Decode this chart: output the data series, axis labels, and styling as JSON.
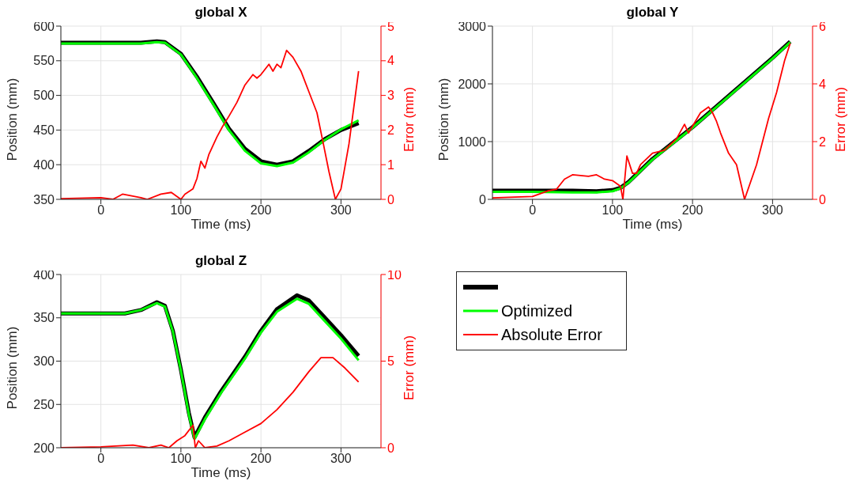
{
  "chart_data": [
    {
      "type": "line",
      "title": "global X",
      "xlabel": "Time (ms)",
      "ylabel": "Position (mm)",
      "y2label": "Error (mm)",
      "xlim": [
        -50,
        350
      ],
      "xticks": [
        0,
        100,
        200,
        300
      ],
      "ylim": [
        350,
        600
      ],
      "yticks": [
        350,
        400,
        450,
        500,
        550,
        600
      ],
      "y2lim": [
        0,
        5
      ],
      "y2ticks": [
        0,
        1,
        2,
        3,
        4,
        5
      ],
      "grid": true,
      "series": [
        {
          "color": "#000000",
          "x": [
            -50,
            0,
            50,
            70,
            80,
            100,
            120,
            140,
            160,
            180,
            200,
            220,
            240,
            260,
            280,
            300,
            322
          ],
          "values": [
            576,
            576,
            576,
            578,
            577,
            560,
            527,
            490,
            452,
            423,
            405,
            400,
            405,
            420,
            437,
            450,
            460
          ]
        },
        {
          "color": "#00ff00",
          "x": [
            -50,
            0,
            50,
            70,
            80,
            100,
            120,
            140,
            160,
            180,
            200,
            220,
            240,
            260,
            280,
            300,
            322
          ],
          "values": [
            575,
            575,
            575,
            577,
            576,
            559,
            525,
            488,
            450,
            420,
            402,
            398,
            403,
            418,
            436,
            451,
            464
          ]
        },
        {
          "color": "#ff0000",
          "axis": "y2",
          "x": [
            -50,
            0,
            15,
            27,
            50,
            58,
            75,
            88,
            100,
            105,
            115,
            120,
            125,
            130,
            135,
            145,
            152,
            160,
            170,
            180,
            190,
            195,
            200,
            210,
            215,
            220,
            225,
            232,
            240,
            250,
            260,
            270,
            278,
            285,
            293,
            300,
            310,
            322
          ],
          "values": [
            0.02,
            0.05,
            0,
            0.15,
            0.05,
            0,
            0.15,
            0.2,
            0,
            0.15,
            0.3,
            0.6,
            1.1,
            0.9,
            1.3,
            1.8,
            2.1,
            2.4,
            2.8,
            3.3,
            3.6,
            3.5,
            3.6,
            3.9,
            3.7,
            3.9,
            3.8,
            4.3,
            4.1,
            3.7,
            3.1,
            2.5,
            1.6,
            0.8,
            0,
            0.3,
            1.6,
            3.7
          ]
        }
      ]
    },
    {
      "type": "line",
      "title": "global Y",
      "xlabel": "Time (ms)",
      "ylabel": "Position (mm)",
      "y2label": "Error (mm)",
      "xlim": [
        -50,
        350
      ],
      "xticks": [
        0,
        100,
        200,
        300
      ],
      "ylim": [
        0,
        3000
      ],
      "yticks": [
        0,
        1000,
        2000,
        3000
      ],
      "y2lim": [
        0,
        6
      ],
      "y2ticks": [
        0,
        2,
        4,
        6
      ],
      "grid": true,
      "series": [
        {
          "color": "#000000",
          "x": [
            -50,
            0,
            50,
            80,
            100,
            110,
            120,
            150,
            200,
            250,
            300,
            322
          ],
          "values": [
            150,
            150,
            150,
            140,
            160,
            200,
            300,
            700,
            1250,
            1850,
            2450,
            2730
          ]
        },
        {
          "color": "#00ff00",
          "x": [
            -50,
            0,
            50,
            80,
            100,
            110,
            120,
            150,
            200,
            250,
            300,
            322
          ],
          "values": [
            130,
            130,
            120,
            120,
            140,
            190,
            290,
            690,
            1240,
            1840,
            2440,
            2720
          ]
        },
        {
          "color": "#ff0000",
          "axis": "y2",
          "x": [
            -50,
            0,
            20,
            30,
            40,
            50,
            70,
            80,
            90,
            100,
            110,
            113,
            118,
            125,
            130,
            135,
            150,
            165,
            180,
            190,
            195,
            210,
            220,
            225,
            230,
            235,
            245,
            255,
            265,
            280,
            295,
            305,
            315,
            322
          ],
          "values": [
            0.05,
            0.1,
            0.3,
            0.35,
            0.7,
            0.85,
            0.8,
            0.85,
            0.7,
            0.65,
            0.45,
            0,
            1.5,
            0.9,
            0.9,
            1.2,
            1.6,
            1.7,
            2.1,
            2.6,
            2.3,
            3,
            3.2,
            3,
            2.7,
            2.3,
            1.6,
            1.2,
            0,
            1.2,
            2.8,
            3.7,
            4.8,
            5.4
          ]
        }
      ]
    },
    {
      "type": "line",
      "title": "global Z",
      "xlabel": "Time (ms)",
      "ylabel": "Position (mm)",
      "y2label": "Error (mm)",
      "xlim": [
        -50,
        350
      ],
      "xticks": [
        0,
        100,
        200,
        300
      ],
      "ylim": [
        200,
        400
      ],
      "yticks": [
        200,
        250,
        300,
        350,
        400
      ],
      "y2lim": [
        0,
        10
      ],
      "y2ticks": [
        0,
        5,
        10
      ],
      "grid": true,
      "legend": "right",
      "series": [
        {
          "color": "#000000",
          "x": [
            -50,
            30,
            50,
            70,
            80,
            90,
            100,
            110,
            117,
            130,
            150,
            180,
            200,
            220,
            245,
            260,
            280,
            300,
            322
          ],
          "values": [
            355,
            355,
            359,
            368,
            364,
            335,
            290,
            240,
            212,
            235,
            265,
            305,
            335,
            360,
            376,
            370,
            350,
            330,
            306
          ]
        },
        {
          "name": "Optimized",
          "color": "#00ff00",
          "x": [
            -50,
            30,
            50,
            70,
            80,
            90,
            100,
            110,
            117,
            130,
            150,
            180,
            200,
            220,
            245,
            260,
            280,
            300,
            322
          ],
          "values": [
            355,
            355,
            359,
            367,
            363,
            334,
            289,
            238,
            210,
            233,
            263,
            303,
            333,
            357,
            372,
            366,
            346,
            326,
            301
          ]
        },
        {
          "name": "Absolute Error",
          "color": "#ff0000",
          "axis": "y2",
          "x": [
            -50,
            0,
            40,
            60,
            75,
            85,
            95,
            105,
            115,
            118,
            122,
            130,
            145,
            160,
            180,
            200,
            220,
            240,
            260,
            275,
            290,
            305,
            322
          ],
          "values": [
            0,
            0.05,
            0.15,
            0,
            0.15,
            0,
            0.4,
            0.7,
            1.3,
            0,
            0.4,
            0,
            0.1,
            0.4,
            0.9,
            1.4,
            2.2,
            3.2,
            4.4,
            5.2,
            5.2,
            4.6,
            3.8
          ]
        }
      ]
    }
  ]
}
